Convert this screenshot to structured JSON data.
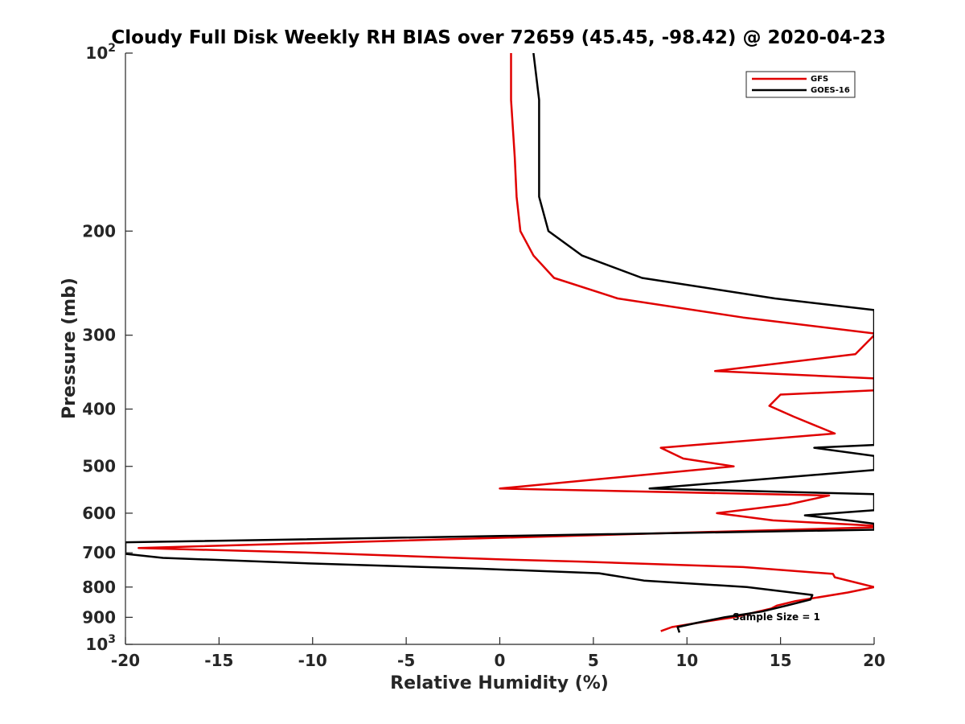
{
  "chart_data": {
    "type": "line",
    "title": "Cloudy Full Disk Weekly RH BIAS over 72659 (45.45, -98.42) @ 2020-04-23",
    "xlabel": "Relative Humidity (%)",
    "ylabel": "Pressure (mb)",
    "xlim": [
      -20,
      20
    ],
    "ylim": [
      100,
      1000
    ],
    "yscale": "log",
    "y_inverted": true,
    "grid": false,
    "x_ticks": [
      "-20",
      "-15",
      "-10",
      "-5",
      "0",
      "5",
      "10",
      "15",
      "20"
    ],
    "y_ticks": [
      {
        "value": 100,
        "base": "10",
        "exp": "2"
      },
      {
        "value": 200,
        "label": "200"
      },
      {
        "value": 300,
        "label": "300"
      },
      {
        "value": 400,
        "label": "400"
      },
      {
        "value": 500,
        "label": "500"
      },
      {
        "value": 600,
        "label": "600"
      },
      {
        "value": 700,
        "label": "700"
      },
      {
        "value": 800,
        "label": "800"
      },
      {
        "value": 900,
        "label": "900"
      },
      {
        "value": 1000,
        "base": "10",
        "exp": "3"
      }
    ],
    "legend_position": "top-right",
    "annotation": "Sample Size = 1",
    "series": [
      {
        "name": "GFS",
        "color": "#e00000",
        "points": [
          [
            0.6,
            100
          ],
          [
            0.6,
            120
          ],
          [
            0.8,
            150
          ],
          [
            0.9,
            175
          ],
          [
            1.1,
            200
          ],
          [
            1.8,
            220
          ],
          [
            2.9,
            240
          ],
          [
            6.3,
            260
          ],
          [
            13.0,
            280
          ],
          [
            20,
            298
          ],
          [
            20,
            300
          ],
          [
            19.0,
            323
          ],
          [
            11.5,
            345
          ],
          [
            20,
            355
          ],
          [
            20,
            372
          ],
          [
            15.0,
            378
          ],
          [
            14.4,
            395
          ],
          [
            15.7,
            412
          ],
          [
            17.9,
            440
          ],
          [
            8.6,
            465
          ],
          [
            9.8,
            485
          ],
          [
            12.5,
            500
          ],
          [
            0,
            545
          ],
          [
            17.6,
            560
          ],
          [
            15.4,
            580
          ],
          [
            11.6,
            600
          ],
          [
            14.6,
            617
          ],
          [
            20,
            630
          ],
          [
            20,
            634
          ],
          [
            -19.3,
            687
          ],
          [
            -10,
            700
          ],
          [
            -0.1,
            718
          ],
          [
            4.5,
            725
          ],
          [
            13.0,
            740
          ],
          [
            17.8,
            760
          ],
          [
            17.9,
            770
          ],
          [
            20,
            800
          ],
          [
            18.6,
            817
          ],
          [
            15.8,
            845
          ],
          [
            14.8,
            860
          ],
          [
            14.5,
            870
          ],
          [
            12.5,
            900
          ],
          [
            11.0,
            915
          ],
          [
            9.2,
            935
          ],
          [
            8.6,
            950
          ]
        ]
      },
      {
        "name": "GOES-16",
        "color": "#000000",
        "points": [
          [
            1.8,
            100
          ],
          [
            2.1,
            120
          ],
          [
            2.1,
            150
          ],
          [
            2.1,
            175
          ],
          [
            2.6,
            200
          ],
          [
            4.4,
            220
          ],
          [
            7.6,
            240
          ],
          [
            14.7,
            260
          ],
          [
            20,
            272
          ],
          [
            20,
            460
          ],
          [
            16.8,
            465
          ],
          [
            20,
            480
          ],
          [
            20,
            507
          ],
          [
            8.0,
            545
          ],
          [
            20,
            557
          ],
          [
            20,
            593
          ],
          [
            16.3,
            605
          ],
          [
            18.8,
            618
          ],
          [
            20,
            625
          ],
          [
            20,
            640
          ],
          [
            -20,
            672
          ],
          [
            -20,
            703
          ],
          [
            -18,
            714
          ],
          [
            -10,
            730
          ],
          [
            -1.0,
            745
          ],
          [
            5.3,
            758
          ],
          [
            7.7,
            780
          ],
          [
            13.2,
            800
          ],
          [
            16.7,
            825
          ],
          [
            16.6,
            840
          ],
          [
            15.3,
            860
          ],
          [
            14.0,
            880
          ],
          [
            12.0,
            900
          ],
          [
            10.5,
            920
          ],
          [
            9.5,
            935
          ],
          [
            9.6,
            955
          ]
        ]
      }
    ]
  }
}
